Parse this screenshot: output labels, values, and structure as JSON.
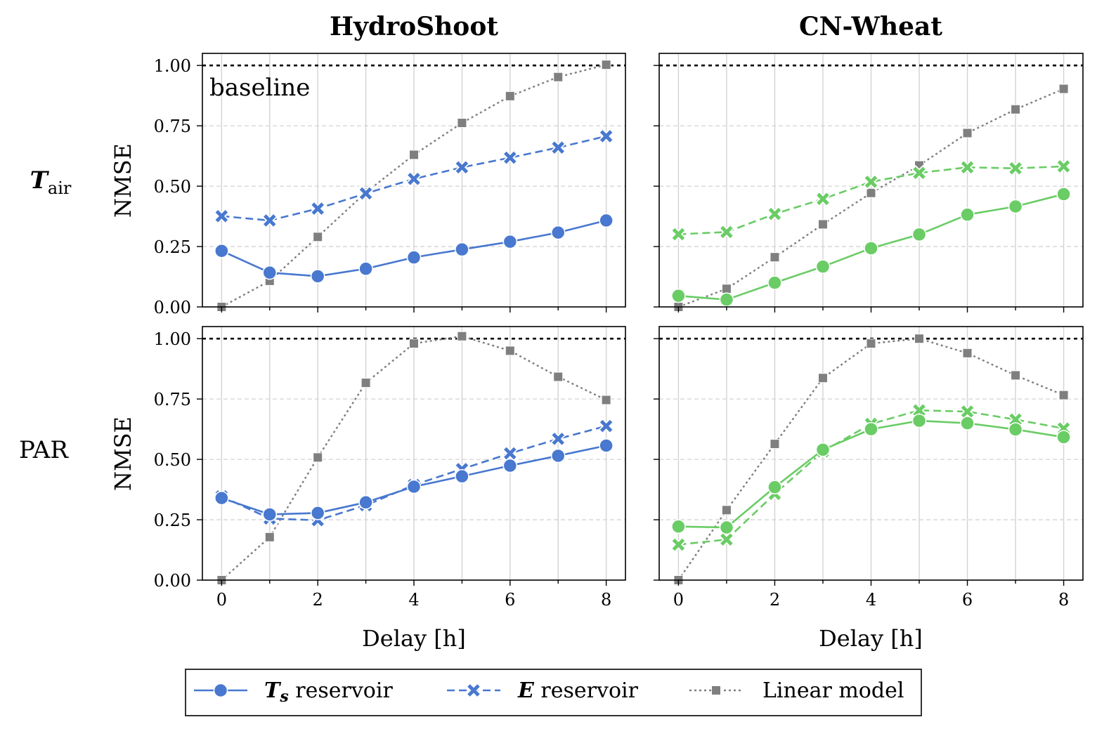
{
  "figure": {
    "column_titles": [
      "HydroShoot",
      "CN-Wheat"
    ],
    "row_labels": [
      {
        "main": "T",
        "sub": "air"
      },
      {
        "main": "PAR",
        "sub": ""
      }
    ],
    "ylabel": "NMSE",
    "xlabel": "Delay [h]",
    "annotation": "baseline",
    "legend": {
      "placement": "bottom-center",
      "entries": [
        {
          "main": "T",
          "sub": "s",
          "rest": " reservoir"
        },
        {
          "main": "E",
          "sub": "",
          "rest": " reservoir"
        },
        {
          "main": "",
          "sub": "",
          "rest": "Linear model"
        }
      ]
    },
    "colors": {
      "blue": "#4878cf",
      "green": "#6acc65",
      "gray": "#7f7f7f"
    }
  },
  "chart_data": [
    {
      "type": "line",
      "panel": "HydroShoot / T_air",
      "x": [
        0,
        1,
        2,
        3,
        4,
        5,
        6,
        7,
        8
      ],
      "xlim": [
        -0.4,
        8.4
      ],
      "ylim": [
        0,
        1.05
      ],
      "xticks": [
        "0",
        "2",
        "4",
        "6",
        "8"
      ],
      "yticks": [
        "0.00",
        "0.25",
        "0.50",
        "0.75",
        "1.00"
      ],
      "baseline": 1.0,
      "grid": true,
      "series": [
        {
          "name": "Ts reservoir",
          "color": "#4878cf",
          "values": [
            0.232,
            0.142,
            0.127,
            0.158,
            0.205,
            0.238,
            0.27,
            0.308,
            0.358
          ]
        },
        {
          "name": "E reservoir",
          "color": "#4878cf",
          "values": [
            0.376,
            0.358,
            0.407,
            0.47,
            0.53,
            0.578,
            0.618,
            0.66,
            0.707
          ]
        },
        {
          "name": "Linear model",
          "color": "#7f7f7f",
          "values": [
            0.0,
            0.108,
            0.29,
            0.474,
            0.63,
            0.762,
            0.873,
            0.952,
            1.003
          ]
        }
      ]
    },
    {
      "type": "line",
      "panel": "CN-Wheat / T_air",
      "x": [
        0,
        1,
        2,
        3,
        4,
        5,
        6,
        7,
        8
      ],
      "xlim": [
        -0.4,
        8.4
      ],
      "ylim": [
        0,
        1.05
      ],
      "xticks": [
        "0",
        "2",
        "4",
        "6",
        "8"
      ],
      "yticks": [
        "0.00",
        "0.25",
        "0.50",
        "0.75",
        "1.00"
      ],
      "baseline": 1.0,
      "grid": true,
      "series": [
        {
          "name": "Ts reservoir",
          "color": "#6acc65",
          "values": [
            0.046,
            0.03,
            0.1,
            0.167,
            0.243,
            0.3,
            0.382,
            0.416,
            0.467
          ]
        },
        {
          "name": "E reservoir",
          "color": "#6acc65",
          "values": [
            0.301,
            0.31,
            0.385,
            0.447,
            0.518,
            0.555,
            0.578,
            0.574,
            0.582
          ]
        },
        {
          "name": "Linear model",
          "color": "#7f7f7f",
          "values": [
            0.0,
            0.075,
            0.206,
            0.342,
            0.472,
            0.586,
            0.72,
            0.818,
            0.903
          ]
        }
      ]
    },
    {
      "type": "line",
      "panel": "HydroShoot / PAR",
      "x": [
        0,
        1,
        2,
        3,
        4,
        5,
        6,
        7,
        8
      ],
      "xlim": [
        -0.4,
        8.4
      ],
      "ylim": [
        0,
        1.05
      ],
      "xticks": [
        "0",
        "2",
        "4",
        "6",
        "8"
      ],
      "yticks": [
        "0.00",
        "0.25",
        "0.50",
        "0.75",
        "1.00"
      ],
      "baseline": 1.0,
      "grid": true,
      "series": [
        {
          "name": "Ts reservoir",
          "color": "#4878cf",
          "values": [
            0.34,
            0.272,
            0.278,
            0.322,
            0.387,
            0.43,
            0.474,
            0.515,
            0.557
          ]
        },
        {
          "name": "E reservoir",
          "color": "#4878cf",
          "values": [
            0.347,
            0.255,
            0.248,
            0.31,
            0.394,
            0.46,
            0.525,
            0.585,
            0.638
          ]
        },
        {
          "name": "Linear model",
          "color": "#7f7f7f",
          "values": [
            0.0,
            0.178,
            0.508,
            0.817,
            0.98,
            1.01,
            0.95,
            0.842,
            0.746
          ]
        }
      ]
    },
    {
      "type": "line",
      "panel": "CN-Wheat / PAR",
      "x": [
        0,
        1,
        2,
        3,
        4,
        5,
        6,
        7,
        8
      ],
      "xlim": [
        -0.4,
        8.4
      ],
      "ylim": [
        0,
        1.05
      ],
      "xticks": [
        "0",
        "2",
        "4",
        "6",
        "8"
      ],
      "yticks": [
        "0.00",
        "0.25",
        "0.50",
        "0.75",
        "1.00"
      ],
      "baseline": 1.0,
      "grid": true,
      "series": [
        {
          "name": "Ts reservoir",
          "color": "#6acc65",
          "values": [
            0.222,
            0.218,
            0.385,
            0.54,
            0.625,
            0.66,
            0.65,
            0.624,
            0.592
          ]
        },
        {
          "name": "E reservoir",
          "color": "#6acc65",
          "values": [
            0.147,
            0.168,
            0.357,
            0.533,
            0.647,
            0.703,
            0.698,
            0.665,
            0.628
          ]
        },
        {
          "name": "Linear model",
          "color": "#7f7f7f",
          "values": [
            0.0,
            0.29,
            0.564,
            0.837,
            0.98,
            1.0,
            0.94,
            0.848,
            0.766
          ]
        }
      ]
    }
  ]
}
